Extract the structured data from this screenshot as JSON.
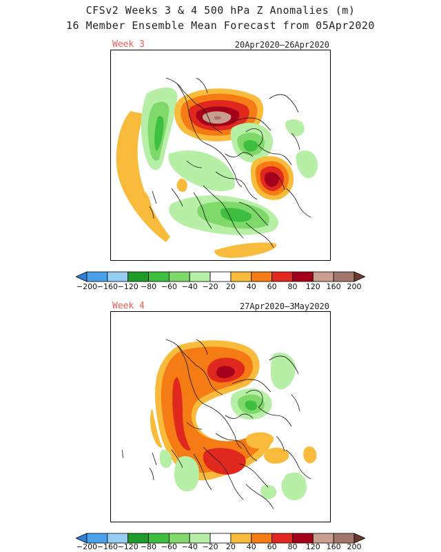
{
  "title": {
    "line1": "CFSv2 Weeks 3 & 4 500 hPa Z Anomalies (m)",
    "line2": "16 Member Ensemble Mean Forecast from 05Apr2020"
  },
  "panels": [
    {
      "label": "Week 3",
      "dates": "20Apr2020–26Apr2020"
    },
    {
      "label": "Week 4",
      "dates": "27Apr2020–3May2020"
    }
  ],
  "colorbar": {
    "units": "m",
    "colors": [
      "#2e7fd8",
      "#4aa3ea",
      "#94cdf2",
      "#1e9b28",
      "#3fbf3f",
      "#7fd96a",
      "#b6efa5",
      "#ffffff",
      "#f9bb3c",
      "#f57c14",
      "#e0281e",
      "#a4001c",
      "#c89e8e",
      "#a3766c",
      "#6c3b2d"
    ],
    "labels": [
      "-200",
      "-160",
      "-120",
      "-80",
      "-60",
      "-40",
      "-20",
      "20",
      "40",
      "60",
      "80",
      "120",
      "160",
      "200"
    ]
  }
}
